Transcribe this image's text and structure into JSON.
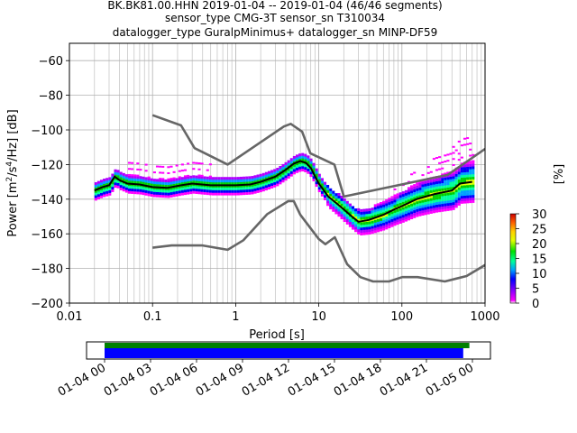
{
  "chart_data": {
    "type": "heatmap",
    "title_lines": [
      "BK.BK81.00.HHN   2019-01-04 -- 2019-01-04  (46/46 segments)",
      "sensor_type CMG-3T sensor_sn T310034",
      "datalogger_type GuralpMinimus+ datalogger_sn MINP-DF59"
    ],
    "xlabel": "Period [s]",
    "ylabel_parts": [
      "Power [m",
      "2",
      "/s",
      "4",
      "/Hz] [dB]"
    ],
    "x_scale": "log",
    "xlim": [
      0.01,
      1000
    ],
    "ylim": [
      -200,
      -50
    ],
    "x_ticks": [
      0.01,
      0.1,
      1,
      10,
      100,
      1000
    ],
    "x_tick_labels": [
      "0.01",
      "0.1",
      "1",
      "10",
      "100",
      "1000"
    ],
    "y_ticks": [
      -200,
      -180,
      -160,
      -140,
      -120,
      -100,
      -80,
      -60
    ],
    "y_tick_labels": [
      "−200",
      "−180",
      "−160",
      "−140",
      "−120",
      "−100",
      "−80",
      "−60"
    ],
    "grid": true,
    "new_high_noise_model": [
      [
        0.1,
        -91.5
      ],
      [
        0.22,
        -97.4
      ],
      [
        0.32,
        -110.5
      ],
      [
        0.8,
        -120
      ],
      [
        3.8,
        -98
      ],
      [
        4.6,
        -96.5
      ],
      [
        6.3,
        -101
      ],
      [
        7.9,
        -113.5
      ],
      [
        15.4,
        -120
      ],
      [
        20,
        -138.5
      ],
      [
        354.8,
        -126
      ],
      [
        1000,
        -111
      ]
    ],
    "new_low_noise_model": [
      [
        0.1,
        -168
      ],
      [
        0.17,
        -166.7
      ],
      [
        0.4,
        -166.7
      ],
      [
        0.8,
        -169.2
      ],
      [
        1.24,
        -163.7
      ],
      [
        2.4,
        -148.6
      ],
      [
        4.3,
        -141.1
      ],
      [
        5,
        -141.1
      ],
      [
        6,
        -149
      ],
      [
        10,
        -163
      ],
      [
        12,
        -166
      ],
      [
        15.6,
        -162
      ],
      [
        21.9,
        -177.5
      ],
      [
        31.6,
        -185
      ],
      [
        45,
        -187.5
      ],
      [
        70,
        -187.5
      ],
      [
        101,
        -185
      ],
      [
        154,
        -185
      ],
      [
        328,
        -187.5
      ],
      [
        600,
        -184.4
      ],
      [
        1000,
        -178
      ]
    ],
    "mean_psd": [
      [
        0.02,
        -135
      ],
      [
        0.025,
        -133
      ],
      [
        0.03,
        -132
      ],
      [
        0.035,
        -127
      ],
      [
        0.04,
        -129
      ],
      [
        0.05,
        -131
      ],
      [
        0.07,
        -131.5
      ],
      [
        0.1,
        -133
      ],
      [
        0.15,
        -133.5
      ],
      [
        0.22,
        -132
      ],
      [
        0.3,
        -131
      ],
      [
        0.5,
        -132
      ],
      [
        1,
        -132
      ],
      [
        1.5,
        -131.5
      ],
      [
        2,
        -130
      ],
      [
        3,
        -127
      ],
      [
        4,
        -123
      ],
      [
        5,
        -119.5
      ],
      [
        6,
        -118
      ],
      [
        7,
        -119
      ],
      [
        8,
        -122
      ],
      [
        10,
        -131
      ],
      [
        13,
        -138.5
      ],
      [
        17,
        -143
      ],
      [
        20,
        -146
      ],
      [
        25,
        -150
      ],
      [
        30,
        -153
      ],
      [
        40,
        -152
      ],
      [
        60,
        -149
      ],
      [
        80,
        -146
      ],
      [
        100,
        -144
      ],
      [
        150,
        -140
      ],
      [
        250,
        -137
      ],
      [
        400,
        -135
      ],
      [
        500,
        -131
      ],
      [
        700,
        -130
      ]
    ],
    "colorbar": {
      "label": "[%]",
      "min": 0,
      "max": 30,
      "ticks": [
        0,
        5,
        10,
        15,
        20,
        25,
        30
      ],
      "colormap": "pqlx"
    },
    "coverage": {
      "tick_labels": [
        "01-04 00",
        "01-04 03",
        "01-04 06",
        "01-04 09",
        "01-04 12",
        "01-04 15",
        "01-04 18",
        "01-04 21",
        "01-05 00"
      ],
      "data_coverage_end_hours": 23.8,
      "processed_coverage_end_hours": 23.4,
      "data_color": "#008000",
      "processed_color": "#0000ff"
    }
  }
}
